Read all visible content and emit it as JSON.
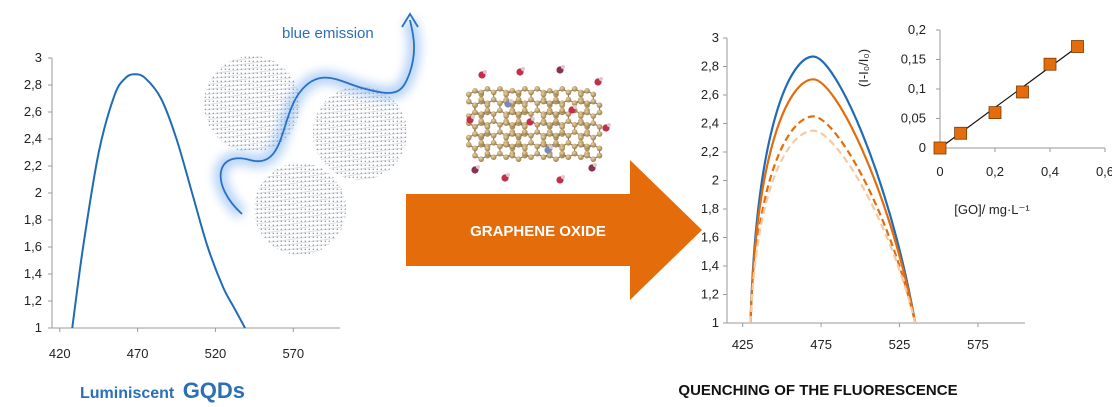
{
  "colors": {
    "blue": "#1f6cb5",
    "orange": "#e46c0a",
    "orange_light": "#f6c9a3",
    "caption_blue": "#2a6fb8",
    "marker": "#e46c0a"
  },
  "left_panel": {
    "annotation": "blue emission",
    "caption_prefix": "Luminiscent",
    "caption_main": "GQDs",
    "icons": [
      "gqd-particle-icon",
      "emission-wave-icon"
    ]
  },
  "center_panel": {
    "arrow_label": "GRAPHENE OXIDE",
    "icons": [
      "graphene-oxide-molecule-icon",
      "right-arrow-icon"
    ]
  },
  "right_panel": {
    "caption": "QUENCHING OF THE FLUORESCENCE"
  },
  "chart_data": [
    {
      "id": "gqd_emission",
      "type": "line",
      "x_ticks": [
        "420",
        "470",
        "520",
        "570"
      ],
      "y_ticks": [
        "1",
        "1,2",
        "1,4",
        "1,6",
        "1,8",
        "2",
        "2,2",
        "2,4",
        "2,6",
        "2,8",
        "3"
      ],
      "xlim": [
        415,
        600
      ],
      "ylim": [
        1,
        3
      ],
      "series": [
        {
          "color": "#1f6cb5",
          "style": "solid",
          "peak": 2.88,
          "x": [
            428,
            435,
            445,
            455,
            462,
            468,
            475,
            485,
            495,
            505,
            515,
            525,
            532,
            539
          ],
          "y": [
            1.0,
            1.6,
            2.3,
            2.72,
            2.85,
            2.88,
            2.85,
            2.7,
            2.4,
            2.0,
            1.6,
            1.3,
            1.15,
            1.0
          ]
        }
      ]
    },
    {
      "id": "quenching_spectra",
      "type": "line",
      "x_ticks": [
        "425",
        "475",
        "525",
        "575"
      ],
      "y_ticks": [
        "1",
        "1,2",
        "1,4",
        "1,6",
        "1,8",
        "2",
        "2,2",
        "2,4",
        "2,6",
        "2,8",
        "3"
      ],
      "xlim": [
        415,
        605
      ],
      "ylim": [
        1,
        3
      ],
      "series": [
        {
          "color": "#1f6cb5",
          "style": "solid",
          "peak": 2.87
        },
        {
          "color": "#e46c0a",
          "style": "solid",
          "peak": 2.71
        },
        {
          "color": "#e46c0a",
          "style": "dashed",
          "peak": 2.45
        },
        {
          "color": "#f6c9a3",
          "style": "dashed",
          "peak": 2.35
        }
      ],
      "x_start": 430,
      "x_peak": 470,
      "x_end": 535
    },
    {
      "id": "stern_volmer_inset",
      "type": "scatter",
      "xlabel": "[GO]/ mg·L⁻¹",
      "ylabel": "(I-I₀/I₀)",
      "x_ticks": [
        "0",
        "0,2",
        "0,4",
        "0,6"
      ],
      "y_ticks": [
        "0",
        "0,05",
        "0,1",
        "0,15",
        "0,2"
      ],
      "xlim": [
        0,
        0.6
      ],
      "ylim": [
        0,
        0.2
      ],
      "points": {
        "x": [
          0,
          0.075,
          0.2,
          0.3,
          0.4,
          0.5
        ],
        "y": [
          0,
          0.025,
          0.06,
          0.095,
          0.142,
          0.172
        ]
      },
      "fit_line": {
        "x": [
          0,
          0.51
        ],
        "y": [
          0,
          0.175
        ]
      }
    }
  ]
}
